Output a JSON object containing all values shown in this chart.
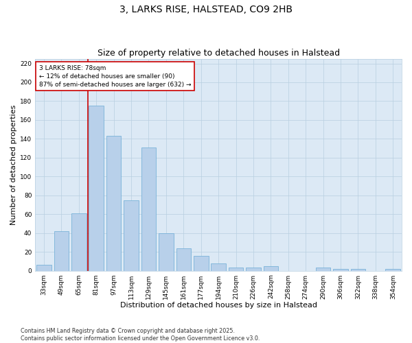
{
  "title1": "3, LARKS RISE, HALSTEAD, CO9 2HB",
  "title2": "Size of property relative to detached houses in Halstead",
  "xlabel": "Distribution of detached houses by size in Halstead",
  "ylabel": "Number of detached properties",
  "footer": "Contains HM Land Registry data © Crown copyright and database right 2025.\nContains public sector information licensed under the Open Government Licence v3.0.",
  "categories": [
    "33sqm",
    "49sqm",
    "65sqm",
    "81sqm",
    "97sqm",
    "113sqm",
    "129sqm",
    "145sqm",
    "161sqm",
    "177sqm",
    "194sqm",
    "210sqm",
    "226sqm",
    "242sqm",
    "258sqm",
    "274sqm",
    "290sqm",
    "306sqm",
    "322sqm",
    "338sqm",
    "354sqm"
  ],
  "values": [
    6,
    42,
    61,
    175,
    143,
    75,
    131,
    40,
    24,
    16,
    8,
    3,
    3,
    5,
    0,
    0,
    3,
    2,
    2,
    0,
    2
  ],
  "bar_color": "#b8d0ea",
  "bar_edge_color": "#6aaad4",
  "bar_width": 0.85,
  "vline_bin": 3,
  "vline_color": "#cc0000",
  "annotation_text": "3 LARKS RISE: 78sqm\n← 12% of detached houses are smaller (90)\n87% of semi-detached houses are larger (632) →",
  "annotation_box_color": "#ffffff",
  "annotation_box_edge": "#cc0000",
  "ylim": [
    0,
    225
  ],
  "yticks": [
    0,
    20,
    40,
    60,
    80,
    100,
    120,
    140,
    160,
    180,
    200,
    220
  ],
  "bg_color": "#ffffff",
  "plot_bg_color": "#dce9f5",
  "grid_color": "#b8cfe0",
  "title_fontsize": 10,
  "subtitle_fontsize": 9,
  "axis_label_fontsize": 8,
  "tick_fontsize": 6.5,
  "footer_fontsize": 5.8,
  "annotation_fontsize": 6.5
}
